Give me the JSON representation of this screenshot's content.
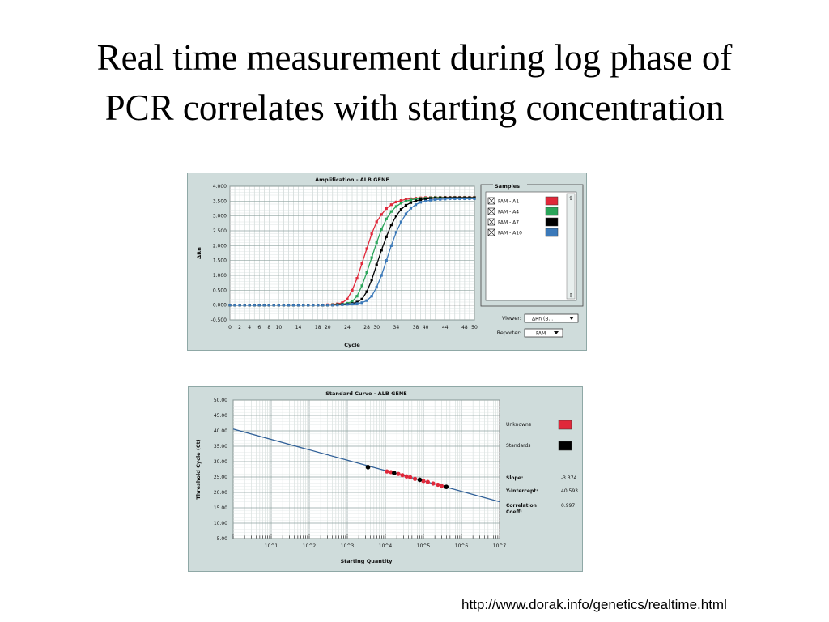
{
  "slide": {
    "title_line1": "Real time measurement during log phase of",
    "title_line2": "PCR correlates with starting concentration",
    "source_url": "http://www.dorak.info/genetics/realtime.html"
  },
  "chart_data": [
    {
      "type": "line",
      "title": "Amplification - ALB GENE",
      "xlabel": "Cycle",
      "ylabel": "ΔRn",
      "xlim": [
        0,
        50
      ],
      "ylim": [
        -0.5,
        4.0
      ],
      "x_ticks": [
        "0",
        "2",
        "4",
        "6",
        "8",
        "10",
        "14",
        "18",
        "20",
        "24",
        "28",
        "30",
        "34",
        "38",
        "40",
        "44",
        "48",
        "50"
      ],
      "y_ticks": [
        "4.000",
        "3.500",
        "3.000",
        "2.500",
        "2.000",
        "1.500",
        "1.000",
        "0.500",
        "0.000",
        "-0.500"
      ],
      "grid": true,
      "threshold": 0.0,
      "x": [
        0,
        1,
        2,
        3,
        4,
        5,
        6,
        7,
        8,
        9,
        10,
        11,
        12,
        13,
        14,
        15,
        16,
        17,
        18,
        19,
        20,
        21,
        22,
        23,
        24,
        25,
        26,
        27,
        28,
        29,
        30,
        31,
        32,
        33,
        34,
        35,
        36,
        37,
        38,
        39,
        40,
        41,
        42,
        43,
        44,
        45,
        46,
        47,
        48,
        49,
        50
      ],
      "series": [
        {
          "name": "FAM - A1",
          "color": "#e0283a",
          "values": [
            0,
            0,
            0,
            0,
            0,
            0,
            0,
            0,
            0,
            0,
            0,
            0,
            0,
            0,
            0,
            0,
            0,
            0,
            0,
            0,
            0.01,
            0.02,
            0.04,
            0.08,
            0.2,
            0.5,
            0.9,
            1.4,
            1.9,
            2.4,
            2.8,
            3.05,
            3.25,
            3.38,
            3.47,
            3.52,
            3.56,
            3.58,
            3.6,
            3.61,
            3.62,
            3.62,
            3.63,
            3.63,
            3.63,
            3.63,
            3.63,
            3.63,
            3.63,
            3.63,
            3.63
          ]
        },
        {
          "name": "FAM - A4",
          "color": "#2aa55a",
          "values": [
            0,
            0,
            0,
            0,
            0,
            0,
            0,
            0,
            0,
            0,
            0,
            0,
            0,
            0,
            0,
            0,
            0,
            0,
            0,
            0,
            0,
            0.01,
            0.02,
            0.03,
            0.06,
            0.12,
            0.3,
            0.65,
            1.1,
            1.6,
            2.1,
            2.55,
            2.9,
            3.15,
            3.32,
            3.43,
            3.5,
            3.54,
            3.57,
            3.59,
            3.6,
            3.61,
            3.62,
            3.62,
            3.62,
            3.62,
            3.62,
            3.62,
            3.62,
            3.62,
            3.62
          ]
        },
        {
          "name": "FAM - A7",
          "color": "#000000",
          "values": [
            0,
            0,
            0,
            0,
            0,
            0,
            0,
            0,
            0,
            0,
            0,
            0,
            0,
            0,
            0,
            0,
            0,
            0,
            0,
            0,
            0,
            0,
            0.01,
            0.02,
            0.03,
            0.05,
            0.1,
            0.2,
            0.45,
            0.85,
            1.35,
            1.85,
            2.3,
            2.7,
            3.0,
            3.22,
            3.36,
            3.45,
            3.51,
            3.55,
            3.57,
            3.59,
            3.6,
            3.6,
            3.61,
            3.61,
            3.61,
            3.61,
            3.61,
            3.61,
            3.61
          ]
        },
        {
          "name": "FAM - A10",
          "color": "#3b79b9",
          "values": [
            0,
            0,
            0,
            0,
            0,
            0,
            0,
            0,
            0,
            0,
            0,
            0,
            0,
            0,
            0,
            0,
            0,
            0,
            0,
            0,
            0,
            0,
            0,
            0.01,
            0.02,
            0.03,
            0.05,
            0.08,
            0.15,
            0.3,
            0.6,
            1.0,
            1.5,
            2.0,
            2.45,
            2.8,
            3.07,
            3.26,
            3.38,
            3.46,
            3.5,
            3.53,
            3.55,
            3.56,
            3.57,
            3.58,
            3.58,
            3.58,
            3.58,
            3.58,
            3.58
          ]
        }
      ],
      "legend": {
        "header": "Samples",
        "items": [
          {
            "label": "FAM - A1",
            "color": "#e0283a"
          },
          {
            "label": "FAM - A4",
            "color": "#2aa55a"
          },
          {
            "label": "FAM - A7",
            "color": "#000000"
          },
          {
            "label": "FAM - A10",
            "color": "#3b79b9"
          }
        ]
      },
      "controls": {
        "viewer_label": "Viewer:",
        "viewer_value": "ΔRn (B...",
        "reporter_label": "Reporter:",
        "reporter_value": "FAM"
      }
    },
    {
      "type": "scatter",
      "title": "Standard Curve - ALB GENE",
      "xlabel": "Starting Quantity",
      "ylabel": "Threshold Cycle (Ct)",
      "x_scale": "log",
      "xlim": [
        1,
        10000000
      ],
      "ylim": [
        5,
        50
      ],
      "x_ticks": [
        "10^1",
        "10^2",
        "10^3",
        "10^4",
        "10^5",
        "10^6",
        "10^7"
      ],
      "y_ticks": [
        "50.00",
        "45.00",
        "40.00",
        "35.00",
        "30.00",
        "25.00",
        "20.00",
        "15.00",
        "10.00",
        "5.00"
      ],
      "grid": true,
      "fit_line": {
        "slope": -3.374,
        "intercept": 40.593,
        "color": "#2f5f97"
      },
      "standards": [
        {
          "x": 3500,
          "y": 28.2
        },
        {
          "x": 17000,
          "y": 26.3
        },
        {
          "x": 80000,
          "y": 24.1
        },
        {
          "x": 400000,
          "y": 21.8
        }
      ],
      "unknowns": [
        {
          "x": 11000,
          "y": 26.8
        },
        {
          "x": 14000,
          "y": 26.6
        },
        {
          "x": 22000,
          "y": 26.0
        },
        {
          "x": 28000,
          "y": 25.6
        },
        {
          "x": 36000,
          "y": 25.2
        },
        {
          "x": 45000,
          "y": 24.9
        },
        {
          "x": 60000,
          "y": 24.4
        },
        {
          "x": 100000,
          "y": 23.7
        },
        {
          "x": 130000,
          "y": 23.4
        },
        {
          "x": 180000,
          "y": 22.9
        },
        {
          "x": 240000,
          "y": 22.5
        },
        {
          "x": 300000,
          "y": 22.1
        }
      ],
      "legend": [
        {
          "label": "Unknowns",
          "color": "#e0283a"
        },
        {
          "label": "Standards",
          "color": "#000000"
        }
      ],
      "stats": [
        {
          "label": "Slope:",
          "value": "-3.374"
        },
        {
          "label": "Y-Intercept:",
          "value": "40.593"
        },
        {
          "label": "Correlation",
          "label2": "Coeff:",
          "value": "0.997"
        }
      ]
    }
  ]
}
